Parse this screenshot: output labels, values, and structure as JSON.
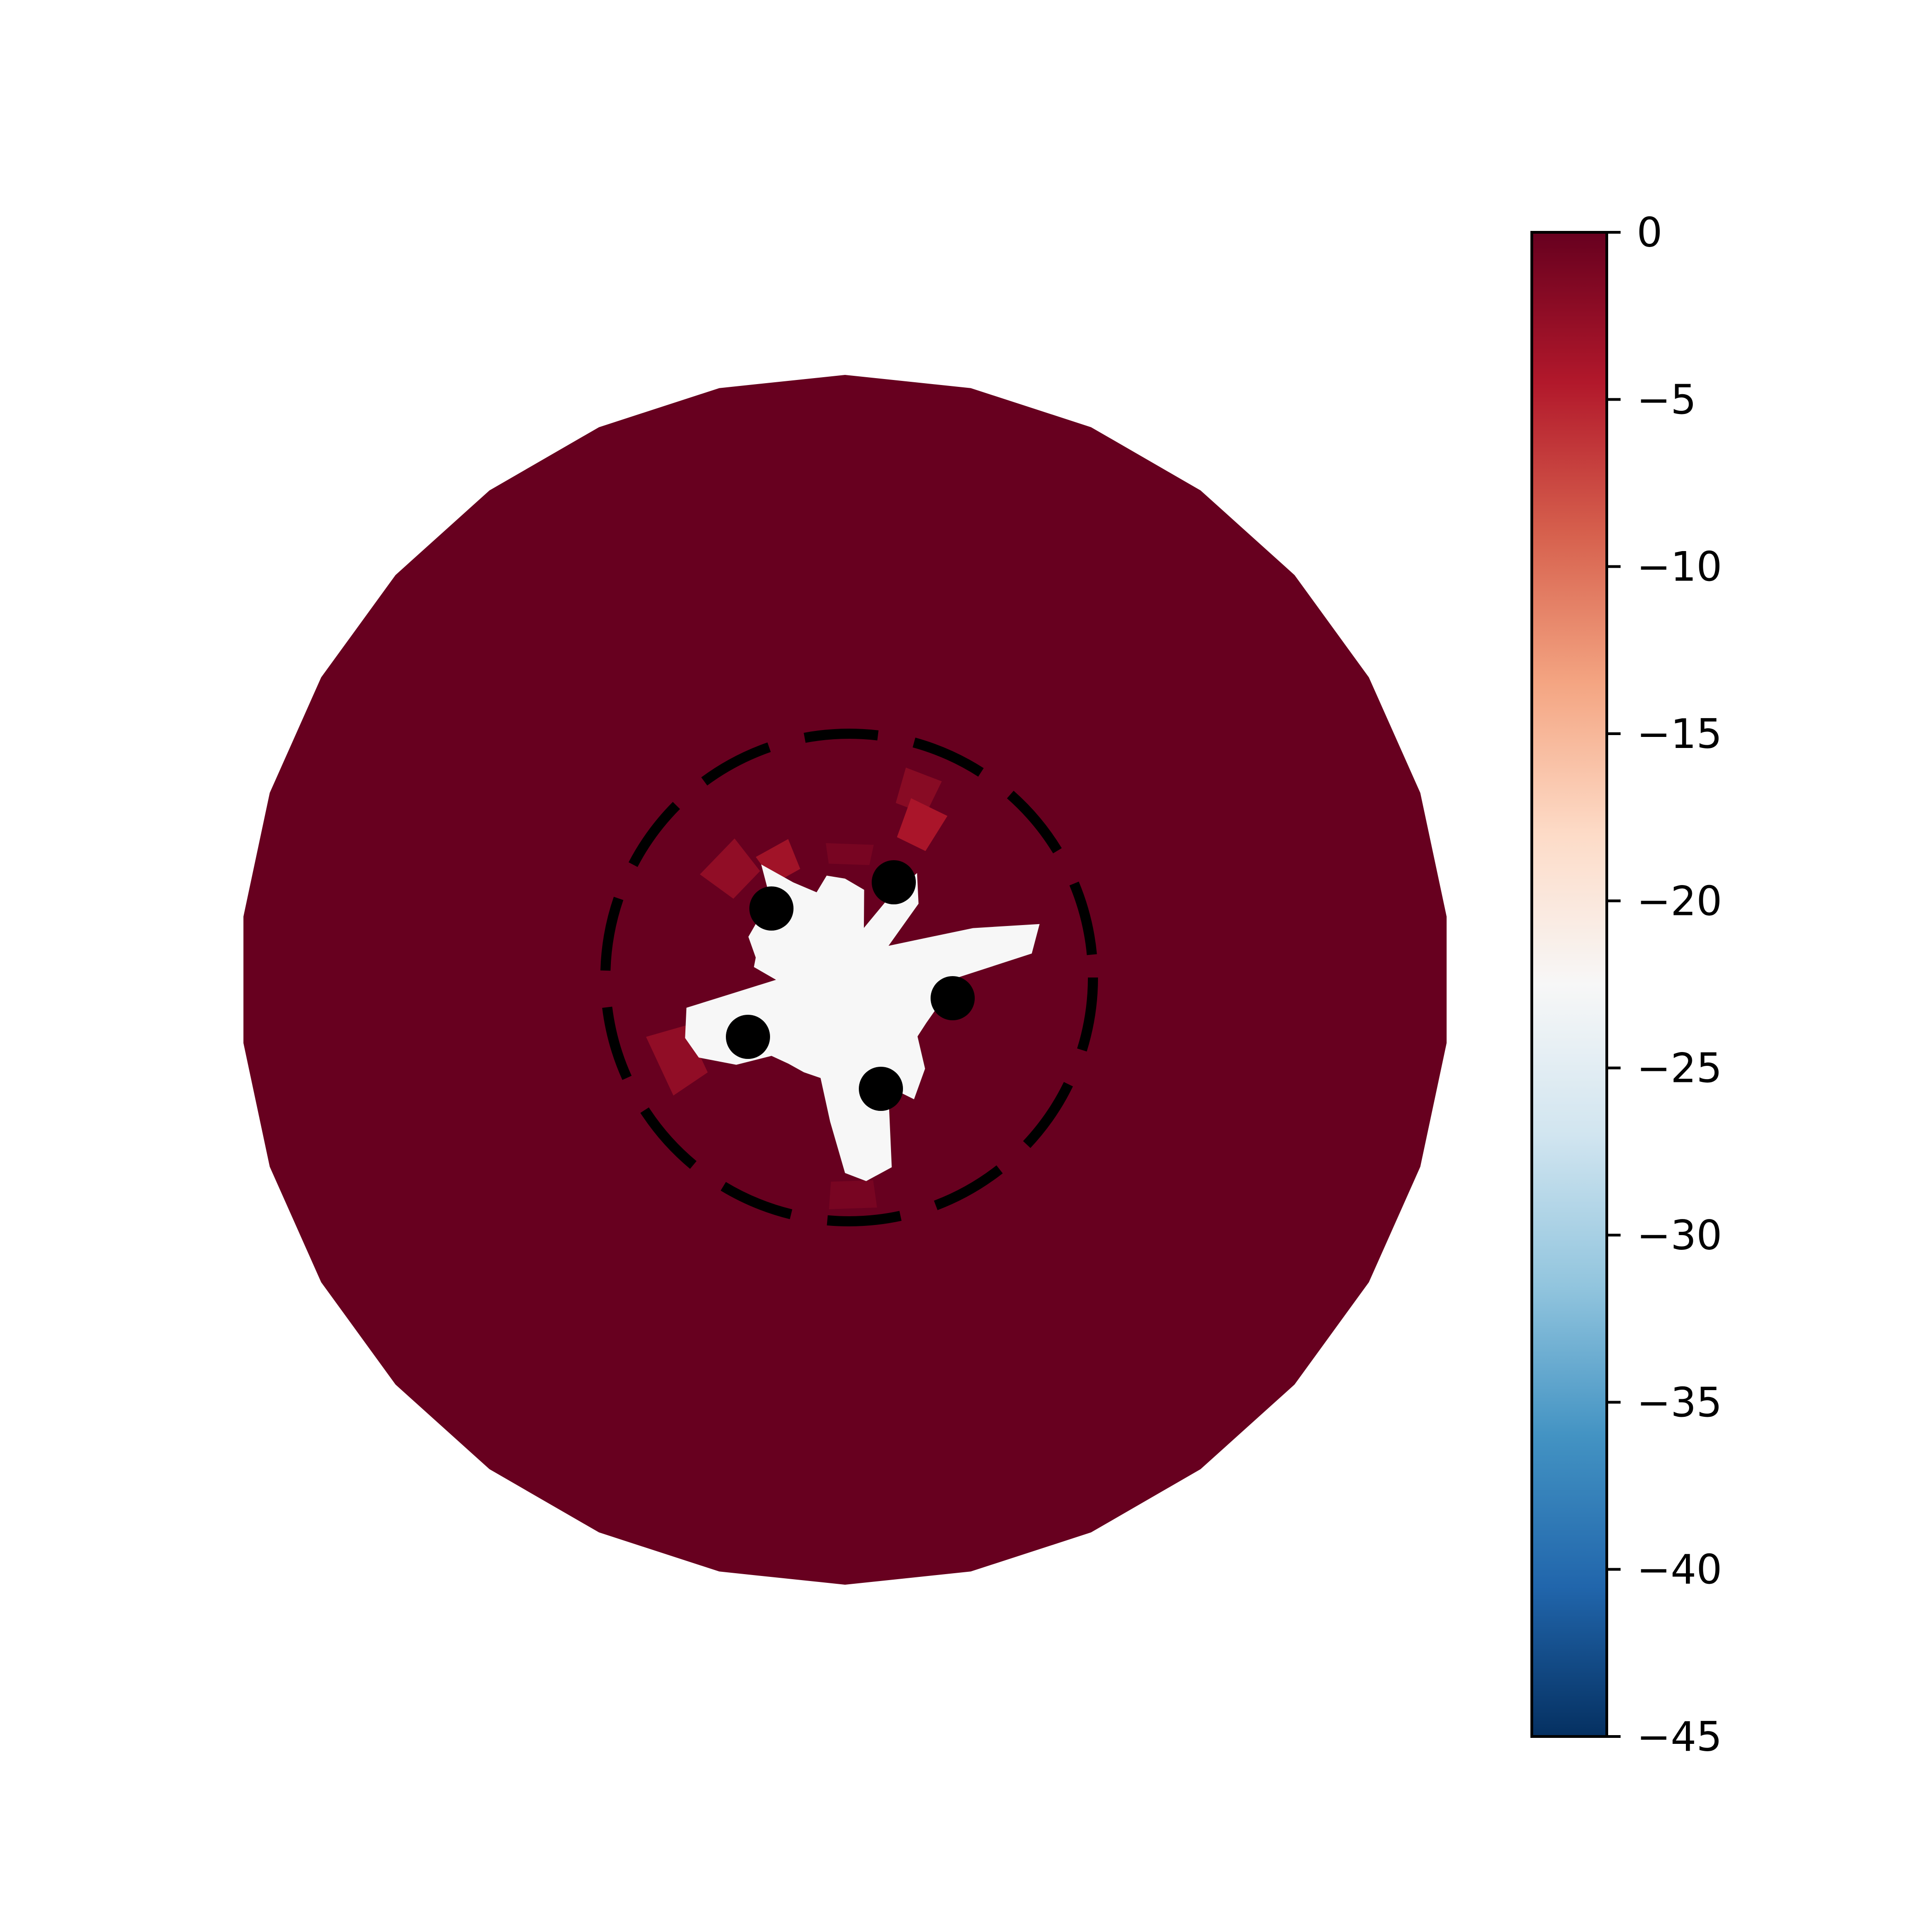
{
  "chart_data": {
    "type": "heatmap",
    "projection": "polar",
    "title": "",
    "xlabel": "",
    "ylabel": "",
    "colormap": "RdBu_r",
    "colorbar": {
      "vmin": -45,
      "vmax": 0,
      "ticks": [
        0,
        -5,
        -10,
        -15,
        -20,
        -25,
        -30,
        -35,
        -40,
        -45
      ],
      "tick_labels": [
        "0",
        "−5",
        "−10",
        "−15",
        "−20",
        "−25",
        "−30",
        "−35",
        "−40",
        "−45"
      ],
      "position": "right"
    },
    "background_value": 0,
    "inner_region_value": -22.5,
    "inner_cells": [
      {
        "value": -2.5,
        "label": "upper-left sector outer"
      },
      {
        "value": -3.5,
        "label": "upper-left sector mid"
      },
      {
        "value": -1.0,
        "label": "upper-center sector"
      },
      {
        "value": -2.0,
        "label": "upper-right sector outer"
      },
      {
        "value": -4.0,
        "label": "upper-right sector mid"
      },
      {
        "value": -2.5,
        "label": "left sector outer"
      },
      {
        "value": -1.0,
        "label": "bottom sector"
      }
    ],
    "markers": [
      {
        "label": "point 1",
        "value": "circle"
      },
      {
        "label": "point 2",
        "value": "circle"
      },
      {
        "label": "point 3",
        "value": "circle"
      },
      {
        "label": "point 4",
        "value": "circle"
      },
      {
        "label": "point 5",
        "value": "circle"
      }
    ],
    "boundary": {
      "style": "dashed",
      "color": "#000000"
    },
    "grid": false,
    "colors": {
      "background_disc": "#67001f",
      "inner_region": "#ffffff",
      "marker": "#000000"
    }
  }
}
